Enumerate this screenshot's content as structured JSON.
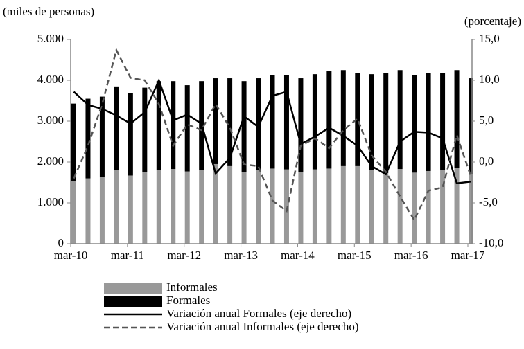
{
  "chart_data": {
    "type": "bar",
    "stacked": true,
    "left_axis_label": "(miles de personas)",
    "right_axis_label": "(porcentaje)",
    "categories": [
      "mar-10",
      null,
      null,
      null,
      "mar-11",
      null,
      null,
      null,
      "mar-12",
      null,
      null,
      null,
      "mar-13",
      null,
      null,
      null,
      "mar-14",
      null,
      null,
      null,
      "mar-15",
      null,
      null,
      null,
      "mar-16",
      null,
      null,
      null,
      "mar-17"
    ],
    "series": [
      {
        "name": "Informales",
        "type": "bar",
        "color": "#999999",
        "values": [
          1530,
          1600,
          1630,
          1810,
          1670,
          1750,
          1800,
          1830,
          1770,
          1800,
          1950,
          1900,
          1750,
          1800,
          1840,
          1820,
          1750,
          1820,
          1840,
          1900,
          1900,
          1800,
          1730,
          1830,
          1740,
          1780,
          1800,
          1850,
          1700
        ]
      },
      {
        "name": "Formales",
        "type": "bar",
        "color": "#000000",
        "values": [
          1900,
          1950,
          1970,
          2040,
          2010,
          2070,
          2180,
          2150,
          2110,
          2180,
          2100,
          2150,
          2230,
          2250,
          2280,
          2300,
          2300,
          2330,
          2380,
          2350,
          2280,
          2350,
          2450,
          2420,
          2380,
          2400,
          2380,
          2400,
          2350
        ]
      },
      {
        "name": "Variación anual Formales (eje derecho)",
        "type": "line",
        "axis": "y2",
        "color": "#000000",
        "dashed": false,
        "values": [
          8.6,
          7.0,
          6.5,
          5.7,
          4.7,
          6.1,
          10.0,
          5.1,
          5.8,
          4.7,
          -1.4,
          0.5,
          5.6,
          4.3,
          8.1,
          8.6,
          2.2,
          3.1,
          4.2,
          3.2,
          2.0,
          -0.5,
          -1.5,
          2.5,
          3.7,
          3.6,
          2.9,
          -2.6,
          -2.4
        ]
      },
      {
        "name": "Variación anual Informales (eje derecho)",
        "type": "line",
        "axis": "y2",
        "color": "#555555",
        "dashed": true,
        "values": [
          -2.0,
          2.0,
          7.1,
          13.7,
          10.3,
          10.0,
          7.1,
          2.0,
          4.6,
          3.9,
          7.1,
          4.2,
          -0.3,
          -0.5,
          -4.7,
          -6.0,
          2.0,
          2.9,
          1.7,
          3.9,
          5.3,
          0.8,
          -1.2,
          -4.2,
          -7.1,
          -3.5,
          -3.1,
          3.3,
          -1.8
        ]
      }
    ],
    "ylim": [
      0,
      5000
    ],
    "yticks": [
      0,
      {
        "value": 1000,
        "label": "1.000"
      },
      {
        "value": 2000,
        "label": "2.000"
      },
      {
        "value": 3000,
        "label": "3.000"
      },
      {
        "value": 4000,
        "label": "4.000"
      },
      {
        "value": 5000,
        "label": "5.000"
      }
    ],
    "y2lim": [
      -10,
      15
    ],
    "y2ticks": [
      {
        "value": -10,
        "label": "-10,0"
      },
      {
        "value": -5,
        "label": "-5,0"
      },
      {
        "value": 0,
        "label": "0,0"
      },
      {
        "value": 5,
        "label": "5,0"
      },
      {
        "value": 10,
        "label": "10,0"
      },
      {
        "value": 15,
        "label": "15,0"
      }
    ]
  }
}
